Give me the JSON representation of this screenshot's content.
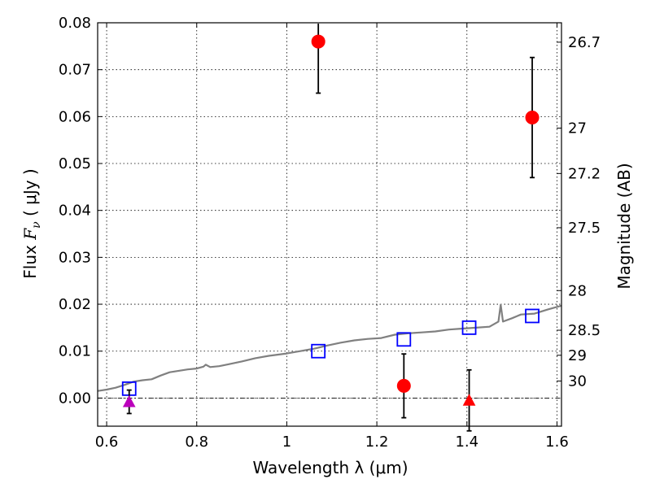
{
  "chart_data": {
    "type": "scatter",
    "xlabel": "Wavelength  λ (μm)",
    "ylabel": {
      "prefix": "Flux  ",
      "symbol": "F",
      "subscript": "ν",
      "unit": "  ( μJy )"
    },
    "y2label": "Magnitude (AB)",
    "xlim": [
      0.58,
      1.61
    ],
    "ylim": [
      -0.006,
      0.08
    ],
    "grid": true,
    "x_ticks": [
      {
        "value": 0.6,
        "label": "0.6"
      },
      {
        "value": 0.8,
        "label": "0.8"
      },
      {
        "value": 1.0,
        "label": "1"
      },
      {
        "value": 1.2,
        "label": "1.2"
      },
      {
        "value": 1.4,
        "label": "1.4"
      },
      {
        "value": 1.6,
        "label": "1.6"
      }
    ],
    "y_ticks": [
      {
        "value": 0.0,
        "label": "0.00"
      },
      {
        "value": 0.01,
        "label": "0.01"
      },
      {
        "value": 0.02,
        "label": "0.02"
      },
      {
        "value": 0.03,
        "label": "0.03"
      },
      {
        "value": 0.04,
        "label": "0.04"
      },
      {
        "value": 0.05,
        "label": "0.05"
      },
      {
        "value": 0.06,
        "label": "0.06"
      },
      {
        "value": 0.07,
        "label": "0.07"
      },
      {
        "value": 0.08,
        "label": "0.08"
      }
    ],
    "y2_ticks": [
      {
        "mag": 26.7,
        "label": "26.7"
      },
      {
        "mag": 27.0,
        "label": "27"
      },
      {
        "mag": 27.2,
        "label": "27.2"
      },
      {
        "mag": 27.5,
        "label": "27.5"
      },
      {
        "mag": 28.0,
        "label": "28"
      },
      {
        "mag": 28.5,
        "label": "28.5"
      },
      {
        "mag": 29.0,
        "label": "29"
      },
      {
        "mag": 30.0,
        "label": "30"
      }
    ],
    "model_spectrum": {
      "color": "#808080",
      "x": [
        0.58,
        0.6,
        0.62,
        0.64,
        0.66,
        0.68,
        0.7,
        0.72,
        0.74,
        0.76,
        0.78,
        0.8,
        0.815,
        0.82,
        0.83,
        0.85,
        0.87,
        0.9,
        0.93,
        0.96,
        1.0,
        1.03,
        1.06,
        1.09,
        1.12,
        1.15,
        1.18,
        1.21,
        1.24,
        1.27,
        1.3,
        1.33,
        1.36,
        1.39,
        1.42,
        1.45,
        1.47,
        1.475,
        1.48,
        1.5,
        1.52,
        1.55,
        1.58,
        1.61
      ],
      "y": [
        0.0015,
        0.0018,
        0.0022,
        0.0028,
        0.0035,
        0.0038,
        0.004,
        0.0048,
        0.0055,
        0.0058,
        0.0061,
        0.0063,
        0.0067,
        0.0071,
        0.0066,
        0.0068,
        0.0072,
        0.0078,
        0.0085,
        0.009,
        0.0095,
        0.01,
        0.0105,
        0.0112,
        0.0118,
        0.0123,
        0.0126,
        0.0128,
        0.0135,
        0.0138,
        0.014,
        0.0142,
        0.0146,
        0.0148,
        0.015,
        0.0152,
        0.0163,
        0.0199,
        0.0163,
        0.017,
        0.0178,
        0.018,
        0.0189,
        0.0197
      ]
    },
    "series": [
      {
        "marker": "square",
        "color": "#0000ff",
        "points": [
          {
            "x": 0.65,
            "y": 0.002
          },
          {
            "x": 1.07,
            "y": 0.01
          },
          {
            "x": 1.26,
            "y": 0.0125
          },
          {
            "x": 1.405,
            "y": 0.015
          },
          {
            "x": 1.545,
            "y": 0.0175
          }
        ]
      },
      {
        "marker": "circle",
        "color": "#ff0000",
        "points": [
          {
            "x": 1.07,
            "y": 0.076,
            "err": 0.011
          },
          {
            "x": 1.26,
            "y": 0.0026,
            "err": 0.0068
          },
          {
            "x": 1.545,
            "y": 0.0598,
            "err": 0.0128
          }
        ]
      },
      {
        "marker": "triangle",
        "color": "#ff0000",
        "points": [
          {
            "x": 1.405,
            "y": -0.0005,
            "err": 0.0065
          }
        ]
      },
      {
        "marker": "triangle",
        "color": "#bb00bb",
        "points": [
          {
            "x": 0.65,
            "y": -0.0008,
            "err": 0.0025
          }
        ]
      }
    ]
  }
}
